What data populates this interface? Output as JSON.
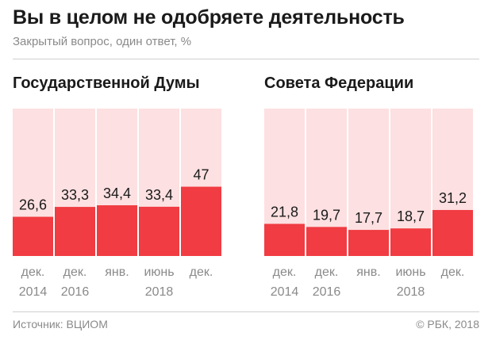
{
  "title": "Вы в целом не одобряете деятельность",
  "subtitle": "Закрытый вопрос, один ответ, %",
  "source": "Источник: ВЦИОМ",
  "credit": "© РБК, 2018",
  "colors": {
    "bar": "#f03c42",
    "background_bar": "#fde0e1",
    "text": "#1a1a1a",
    "muted": "#8a8a8a"
  },
  "chart_data": [
    {
      "type": "bar",
      "title": "Государственной Думы",
      "categories": [
        "дек. 2014",
        "дек. 2016",
        "янв. 2018",
        "июнь 2018",
        "дек. 2018"
      ],
      "category_lines": [
        [
          "дек.",
          "2014"
        ],
        [
          "дек.",
          "2016"
        ],
        [
          "янв.",
          ""
        ],
        [
          "июнь",
          "2018"
        ],
        [
          "дек.",
          ""
        ]
      ],
      "values": [
        26.6,
        33.3,
        34.4,
        33.4,
        47
      ],
      "value_labels": [
        "26,6",
        "33,3",
        "34,4",
        "33,4",
        "47"
      ],
      "ylim": [
        0,
        100
      ]
    },
    {
      "type": "bar",
      "title": "Совета Федерации",
      "categories": [
        "дек. 2014",
        "дек. 2016",
        "янв. 2018",
        "июнь 2018",
        "дек. 2018"
      ],
      "category_lines": [
        [
          "дек.",
          "2014"
        ],
        [
          "дек.",
          "2016"
        ],
        [
          "янв.",
          ""
        ],
        [
          "июнь",
          "2018"
        ],
        [
          "дек.",
          ""
        ]
      ],
      "values": [
        21.8,
        19.7,
        17.7,
        18.7,
        31.2
      ],
      "value_labels": [
        "21,8",
        "19,7",
        "17,7",
        "18,7",
        "31,2"
      ],
      "ylim": [
        0,
        100
      ]
    }
  ]
}
